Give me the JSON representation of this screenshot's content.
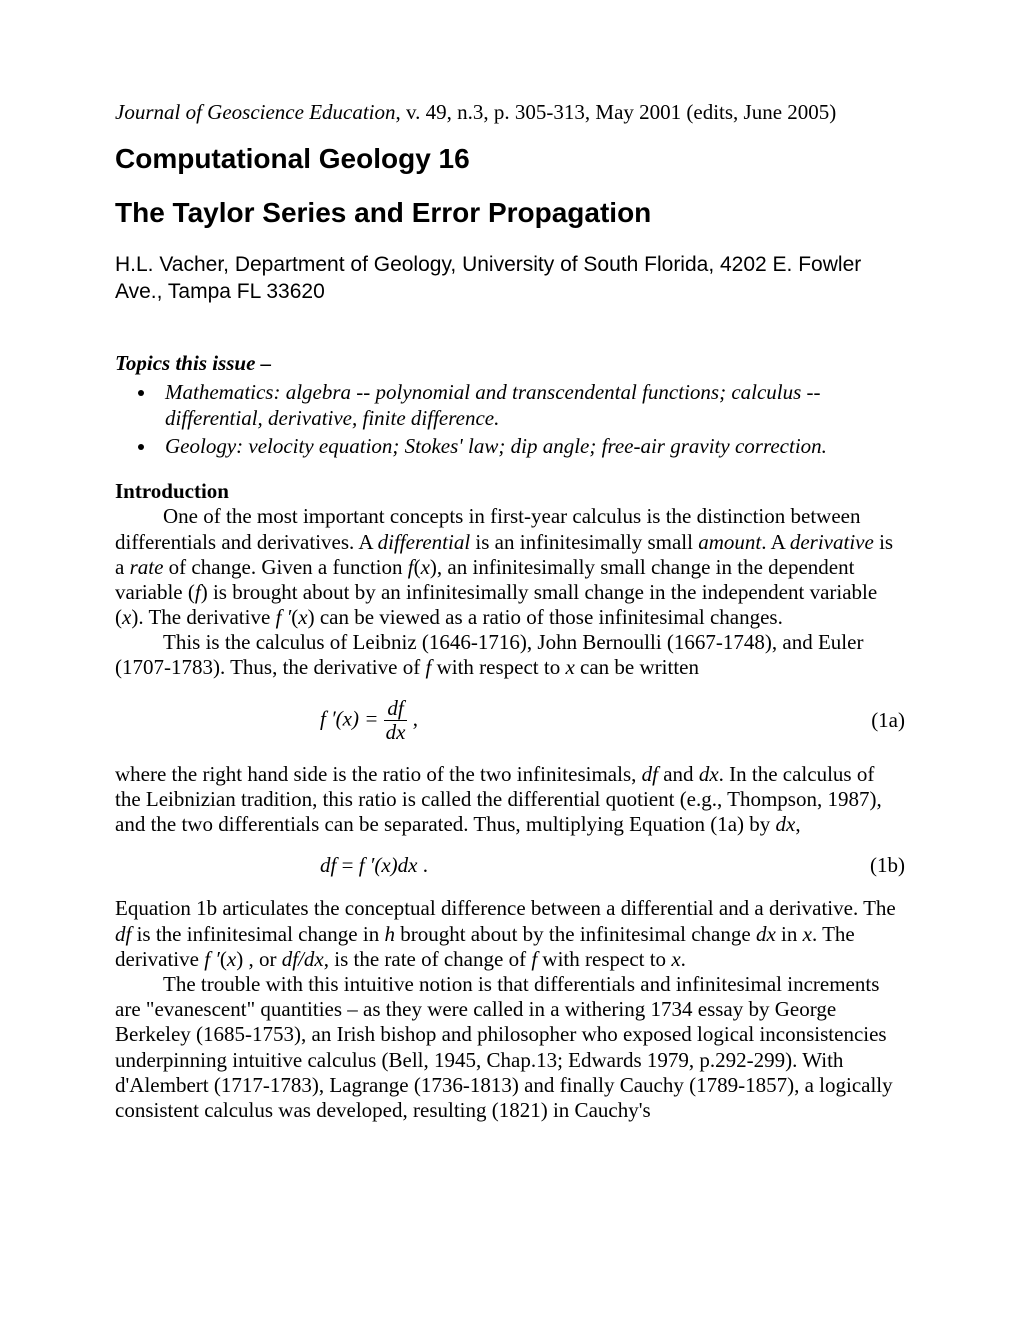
{
  "journal": {
    "title": "Journal of Geoscience Education",
    "citation": ", v. 49, n.3, p. 305-313, May 2001 (edits, June 2005)"
  },
  "headings": {
    "series": "Computational Geology 16",
    "title": "The Taylor Series and Error Propagation"
  },
  "author": "H.L. Vacher, Department of Geology, University of South Florida, 4202 E. Fowler Ave., Tampa FL 33620",
  "topics": {
    "header": "Topics this issue –",
    "items": [
      "Mathematics: algebra -- polynomial and transcendental functions; calculus -- differential, derivative, finite difference.",
      "Geology: velocity equation; Stokes' law; dip angle; free-air gravity correction."
    ]
  },
  "sections": {
    "intro_header": "Introduction"
  },
  "equations": {
    "eq1a_label": "(1a)",
    "eq1b_label": "(1b)"
  }
}
